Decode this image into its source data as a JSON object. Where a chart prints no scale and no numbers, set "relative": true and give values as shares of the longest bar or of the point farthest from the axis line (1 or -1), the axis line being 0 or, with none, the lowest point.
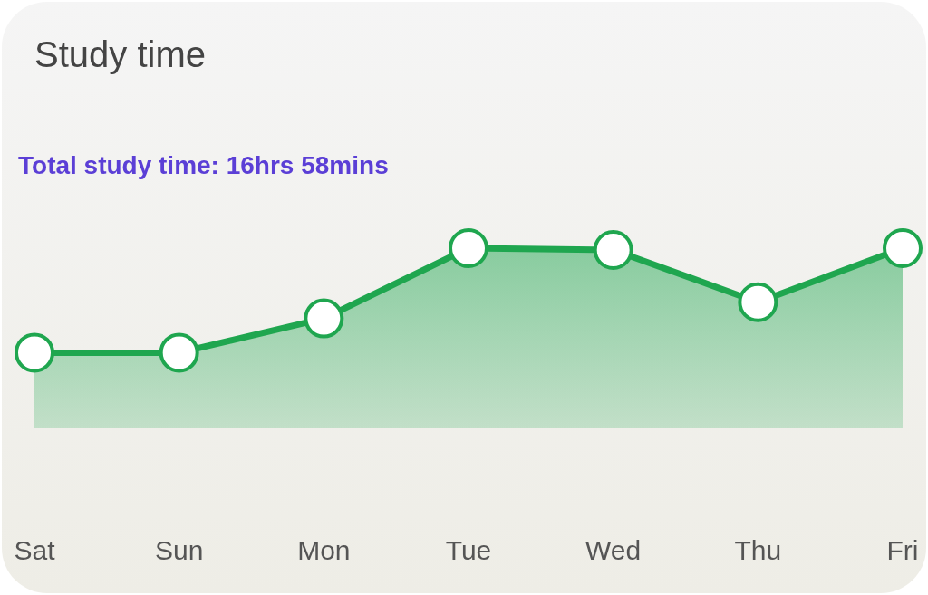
{
  "chart_data": {
    "type": "area",
    "title": "Study time",
    "subtitle": "Total study time: 16hrs 58mins",
    "categories": [
      "Sat",
      "Sun",
      "Mon",
      "Tue",
      "Wed",
      "Thu",
      "Fri"
    ],
    "relative": true,
    "marker": "circle",
    "series": [
      {
        "color": "#1fa64f",
        "values": [
          0.42,
          0.42,
          0.61,
          1,
          0.99,
          0.7,
          1
        ]
      }
    ]
  }
}
